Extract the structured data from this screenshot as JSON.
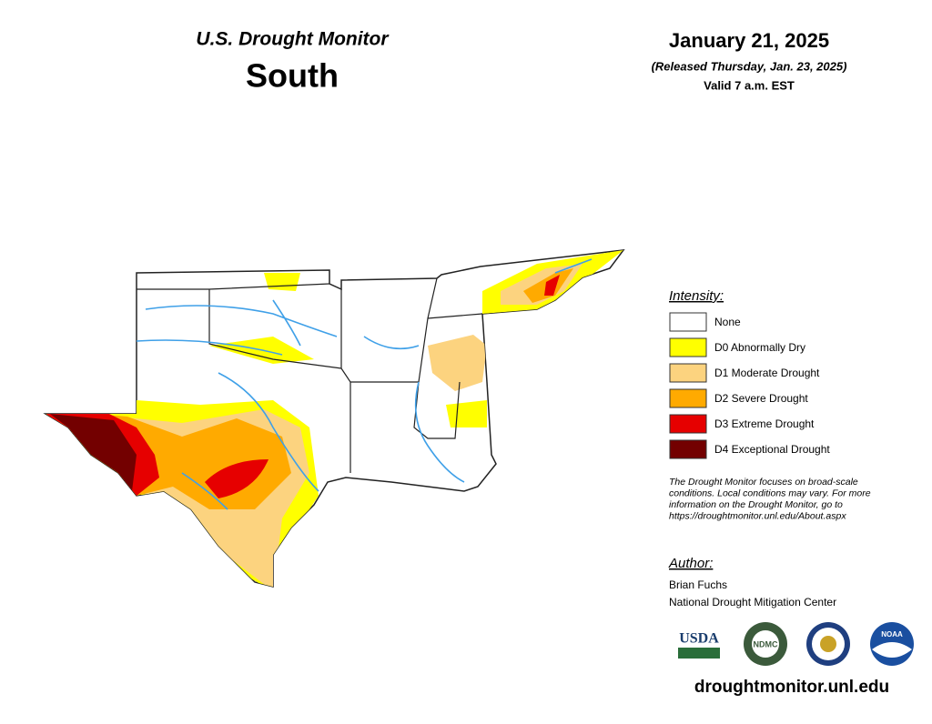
{
  "header": {
    "title": "U.S. Drought Monitor",
    "region": "South"
  },
  "date": {
    "date": "January 21, 2025",
    "released": "(Released Thursday, Jan. 23, 2025)",
    "valid": "Valid 7 a.m. EST"
  },
  "legend": {
    "title": "Intensity:",
    "items": [
      {
        "label": "None",
        "color": "#ffffff"
      },
      {
        "label": "D0 Abnormally Dry",
        "color": "#ffff00"
      },
      {
        "label": "D1 Moderate Drought",
        "color": "#fcd37f"
      },
      {
        "label": "D2 Severe Drought",
        "color": "#ffaa00"
      },
      {
        "label": "D3 Extreme Drought",
        "color": "#e60000"
      },
      {
        "label": "D4 Exceptional Drought",
        "color": "#730000"
      }
    ]
  },
  "note": [
    "The Drought Monitor focuses on broad-scale",
    "conditions. Local conditions may vary. For more",
    "information on the Drought Monitor, go to",
    "https://droughtmonitor.unl.edu/About.aspx"
  ],
  "author": {
    "title": "Author:",
    "name": "Brian Fuchs",
    "org": "National Drought Mitigation Center"
  },
  "logos": [
    "USDA",
    "NDMC",
    "NOAA"
  ],
  "website": "droughtmonitor.unl.edu"
}
